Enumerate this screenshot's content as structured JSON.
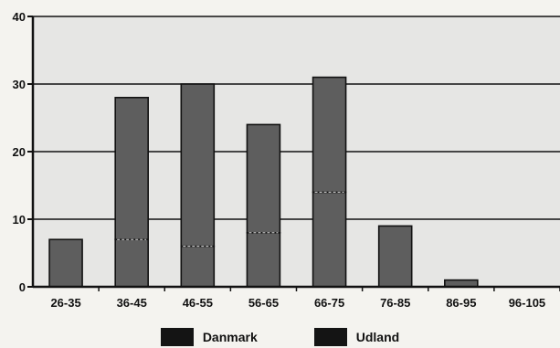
{
  "chart_data": {
    "type": "bar",
    "stacked": true,
    "categories": [
      "26-35",
      "36-45",
      "46-55",
      "56-65",
      "66-75",
      "76-85",
      "86-95",
      "96-105"
    ],
    "series": [
      {
        "name": "Danmark",
        "values": [
          7,
          7,
          6,
          8,
          14,
          9,
          1,
          0
        ]
      },
      {
        "name": "Udland",
        "values": [
          0,
          21,
          24,
          16,
          17,
          0,
          0,
          0
        ]
      }
    ],
    "ylim": [
      0,
      40
    ],
    "yticks": [
      "0",
      "10",
      "20",
      "30",
      "40"
    ],
    "grid": true,
    "legend": "bottom",
    "colors": {
      "plot_bg": "#e6e6e4",
      "bar_fill": "#5e5e5e",
      "bar_edge": "#111111",
      "gridline": "#111111",
      "segment_divider": "#dcdcdc"
    }
  }
}
